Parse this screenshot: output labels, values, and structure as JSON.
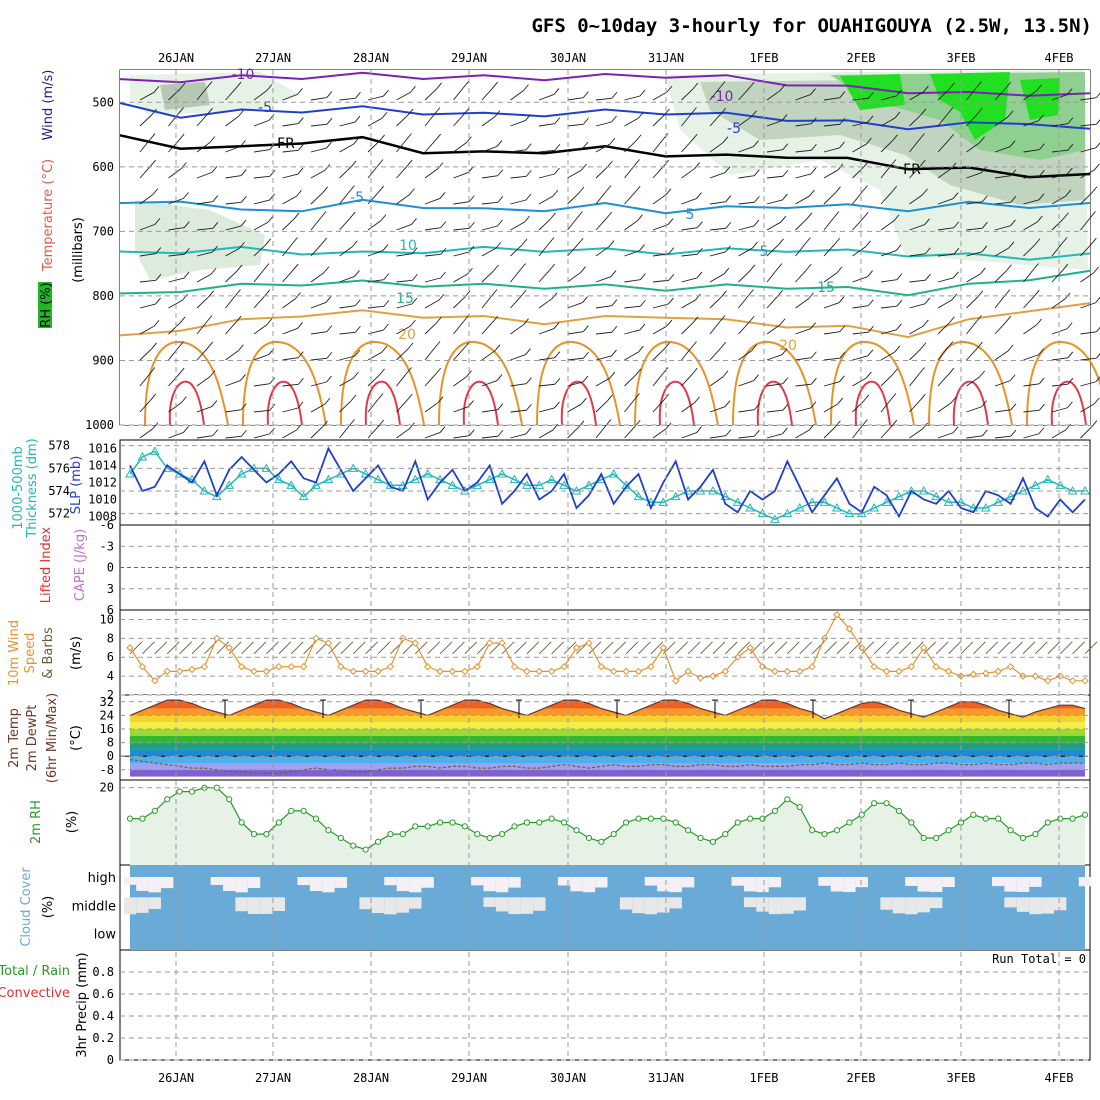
{
  "title": "GFS 0~10day 3-hourly for OUAHIGOUYA (2.5W, 13.5N)",
  "chart_data": {
    "type": "line",
    "date_labels": [
      "26JAN",
      "27JAN",
      "28JAN",
      "29JAN",
      "30JAN",
      "31JAN",
      "1FEB",
      "2FEB",
      "3FEB",
      "4FEB"
    ],
    "run_total_text": "Run Total = 0",
    "colors": {
      "temperature_label": "#e05a4a",
      "wind_label": "#1f1f8f",
      "rh_box": "#22b622",
      "slp_line": "#1f3fcf",
      "thickness_line": "#22b8b8",
      "wind10": "#e8922a",
      "rh2m": "#2a9a2a",
      "cloud": "#6aaad6",
      "capelab": "#c070d0",
      "lifted": "#e03030"
    },
    "panels": [
      {
        "id": "upper_air",
        "ylabel": [
          "Temperature (°C)",
          "Wind (m/s)",
          "RH (%)",
          "(millibars)"
        ],
        "yticks": [
          "500",
          "600",
          "700",
          "800",
          "900",
          "1000"
        ],
        "ylim": [
          1000,
          450
        ],
        "isotherms": [
          {
            "label": "-10",
            "level": 460,
            "color": "#7b22b4"
          },
          {
            "label": "-5",
            "level": 515,
            "color": "#1f3fcf"
          },
          {
            "label": "FR",
            "level": 565,
            "color": "#000000"
          },
          {
            "label": "-5",
            "level": 650,
            "color": "#1e8fd6"
          },
          {
            "label": "5",
            "level": 650,
            "color": "#1e8fd6"
          },
          {
            "label": "10",
            "level": 730,
            "color": "#22b8b8"
          },
          {
            "label": "15",
            "level": 790,
            "color": "#22b08a"
          },
          {
            "label": "20",
            "level": 845,
            "color": "#e2a040"
          }
        ]
      },
      {
        "id": "slp_thickness",
        "ylabel_left": [
          "1000-500mb",
          "Thickness (dm)"
        ],
        "ylabel_right": "SLP (mb)",
        "yticks_left": [
          "578",
          "576",
          "574",
          "572"
        ],
        "yticks_right": [
          "1016",
          "1014",
          "1012",
          "1010",
          "1008"
        ],
        "slp_range": [
          1007,
          1017
        ],
        "slp": [
          1014,
          1011,
          1011.5,
          1014,
          1013,
          1012,
          1014.5,
          1010.5,
          1013.5,
          1015,
          1013.5,
          1012,
          1013,
          1014.5,
          1012.5,
          1012,
          1016,
          1013.5,
          1011,
          1012.5,
          1014,
          1011.5,
          1011,
          1014.5,
          1010,
          1012,
          1013.5,
          1011,
          1012,
          1014,
          1009.5,
          1011,
          1013,
          1010,
          1011,
          1013,
          1009,
          1010.5,
          1013,
          1009.5,
          1011.5,
          1013,
          1009,
          1012,
          1014.5,
          1010,
          1011.5,
          1013.5,
          1009.5,
          1008.5,
          1011,
          1010,
          1011,
          1014.5,
          1011.5,
          1008.5,
          1010.5,
          1012.5,
          1009.5,
          1008.5,
          1011.5,
          1010.5,
          1008,
          1011,
          1010,
          1009.5,
          1011,
          1009,
          1008.5,
          1011,
          1010.5,
          1009.5,
          1012.5,
          1009,
          1008,
          1010,
          1008.5,
          1010
        ],
        "thickness_range": [
          571,
          578.5
        ],
        "thickness": [
          575.5,
          577,
          577.5,
          576,
          575.5,
          575,
          574,
          573.5,
          574.5,
          575.5,
          576,
          576,
          575,
          574.5,
          573.5,
          574.5,
          575,
          575.5,
          576,
          575.5,
          575,
          574.5,
          574.5,
          575,
          575.5,
          575,
          574.5,
          574,
          574.5,
          575,
          575.5,
          575,
          574.5,
          574.5,
          575,
          574.5,
          574,
          574.5,
          575,
          575.5,
          574.5,
          573.5,
          573,
          573,
          573.5,
          574,
          574,
          574,
          573.5,
          573,
          572.5,
          572,
          571.5,
          572,
          572.5,
          573,
          573,
          572.5,
          572,
          572,
          572.5,
          573,
          573.5,
          574,
          574,
          573.5,
          573,
          573,
          572.5,
          572.5,
          573,
          573.5,
          574,
          574.5,
          575,
          574.5,
          574,
          574
        ]
      },
      {
        "id": "cape_li",
        "ylabel": [
          "CAPE (J/kg)",
          "Lifted Index"
        ],
        "yticks": [
          "-6",
          "-3",
          "0",
          "3",
          "6"
        ],
        "yrange": [
          -6,
          6
        ],
        "lifted_zero_line": 0
      },
      {
        "id": "wind10m",
        "ylabel": [
          "10m Wind",
          "Speed",
          "& Barbs",
          "(m/s)"
        ],
        "yticks": [
          "10",
          "8",
          "6",
          "4",
          "2"
        ],
        "yrange": [
          2,
          11
        ],
        "speed": [
          7,
          5,
          3.5,
          4.5,
          4.5,
          4.7,
          5,
          8,
          7,
          5,
          4.5,
          4.5,
          5,
          5,
          5,
          8,
          7.5,
          5,
          4.5,
          4.5,
          4.5,
          5,
          8,
          7.5,
          5,
          4.5,
          4.5,
          4.5,
          5,
          7.5,
          7.5,
          5,
          4.5,
          4.5,
          4.5,
          5,
          7,
          7.5,
          5,
          4.5,
          4.5,
          4.5,
          5,
          7,
          3.5,
          4.5,
          3.8,
          4,
          4.5,
          6,
          7,
          5,
          4.5,
          4.5,
          4.5,
          5,
          8,
          10.5,
          9,
          7,
          5,
          4.5,
          4.5,
          5,
          7,
          5,
          4.5,
          4,
          4.2,
          4.3,
          4.5,
          5,
          4,
          4,
          3.5,
          4,
          3.5,
          3.5
        ]
      },
      {
        "id": "temp2m",
        "ylabel": [
          "2m Temp",
          "2m DewPt",
          "(6hr Min/Max)",
          "(°C)"
        ],
        "yticks": [
          "32",
          "24",
          "16",
          "8",
          "0",
          "-8"
        ],
        "yrange": [
          -14,
          36
        ],
        "color_bands": [
          {
            "v": 36,
            "c": "#e0301e"
          },
          {
            "v": 32,
            "c": "#f06020"
          },
          {
            "v": 28,
            "c": "#f89828"
          },
          {
            "v": 24,
            "c": "#f8d030"
          },
          {
            "v": 20,
            "c": "#f0f040"
          },
          {
            "v": 16,
            "c": "#a0d838"
          },
          {
            "v": 12,
            "c": "#30b830"
          },
          {
            "v": 8,
            "c": "#20a080"
          },
          {
            "v": 4,
            "c": "#1e8ad6"
          },
          {
            "v": 0,
            "c": "#4ab0f0"
          },
          {
            "v": -4,
            "c": "#a0a0f0"
          },
          {
            "v": -8,
            "c": "#8060d0"
          },
          {
            "v": -12,
            "c": "#6040b0"
          }
        ],
        "temp": [
          24,
          27,
          30,
          33,
          33,
          31,
          28,
          26,
          24,
          27,
          30,
          33,
          33,
          31,
          28,
          26,
          24,
          27,
          30,
          33,
          33,
          31,
          28,
          26,
          24,
          27,
          30,
          33,
          33,
          31,
          28,
          26,
          24,
          27,
          30,
          33,
          33,
          31,
          28,
          26,
          24,
          27,
          30,
          33,
          33,
          31,
          28,
          26,
          24,
          27,
          30,
          33,
          33,
          31,
          28,
          26,
          22,
          25,
          28,
          31,
          32,
          30,
          27,
          25,
          23,
          26,
          29,
          32,
          32,
          30,
          27,
          25,
          23,
          26,
          28,
          30,
          30,
          28
        ],
        "dewpt": [
          -2,
          -3,
          -4,
          -5,
          -6,
          -7,
          -7,
          -8,
          -9,
          -9,
          -10,
          -10,
          -10,
          -9,
          -8,
          -7,
          -8,
          -8,
          -9,
          -9,
          -8,
          -7,
          -7,
          -6,
          -6,
          -7,
          -6,
          -6,
          -7,
          -7,
          -6,
          -6,
          -7,
          -7,
          -6,
          -5,
          -6,
          -7,
          -6,
          -5,
          -6,
          -6,
          -5,
          -5,
          -6,
          -6,
          -5,
          -5,
          -6,
          -6,
          -5,
          -6,
          -6,
          -6,
          -5,
          -5,
          -4,
          -5,
          -5,
          -4,
          -5,
          -5,
          -4,
          -5,
          -5,
          -4,
          -4,
          -5,
          -5,
          -4,
          -5,
          -5,
          -4,
          -4,
          -5,
          -4,
          -4,
          -4
        ]
      },
      {
        "id": "rh2m",
        "ylabel": [
          "2m RH",
          "(%)"
        ],
        "yticks": [
          "20"
        ],
        "yrange": [
          0,
          22
        ],
        "rh": [
          12,
          12,
          14,
          17,
          19,
          19,
          20,
          20,
          17,
          11,
          8,
          8,
          11,
          14,
          14,
          12,
          9,
          7,
          5,
          4,
          6,
          8,
          8,
          10,
          10,
          11,
          11,
          10,
          8,
          7,
          8,
          10,
          11,
          11,
          12,
          11,
          9,
          7,
          6,
          8,
          11,
          12,
          12,
          12,
          11,
          9,
          7,
          6,
          8,
          11,
          12,
          12,
          14,
          17,
          15,
          9,
          8,
          9,
          11,
          13,
          16,
          16,
          14,
          11,
          7,
          7,
          9,
          11,
          13,
          12,
          12,
          9,
          7,
          8,
          11,
          12,
          12,
          13
        ]
      },
      {
        "id": "cloud",
        "ylabel": [
          "Cloud Cover",
          "(%)"
        ],
        "layers": [
          "high",
          "middle",
          "low"
        ]
      },
      {
        "id": "precip",
        "ylabel_left": [
          "Total / Rain",
          "Convective"
        ],
        "ylabel": [
          "3hr Precip (mm)"
        ],
        "yticks": [
          "0.8",
          "0.6",
          "0.4",
          "0.2",
          "0"
        ],
        "yrange": [
          0,
          1
        ],
        "values": []
      }
    ]
  }
}
